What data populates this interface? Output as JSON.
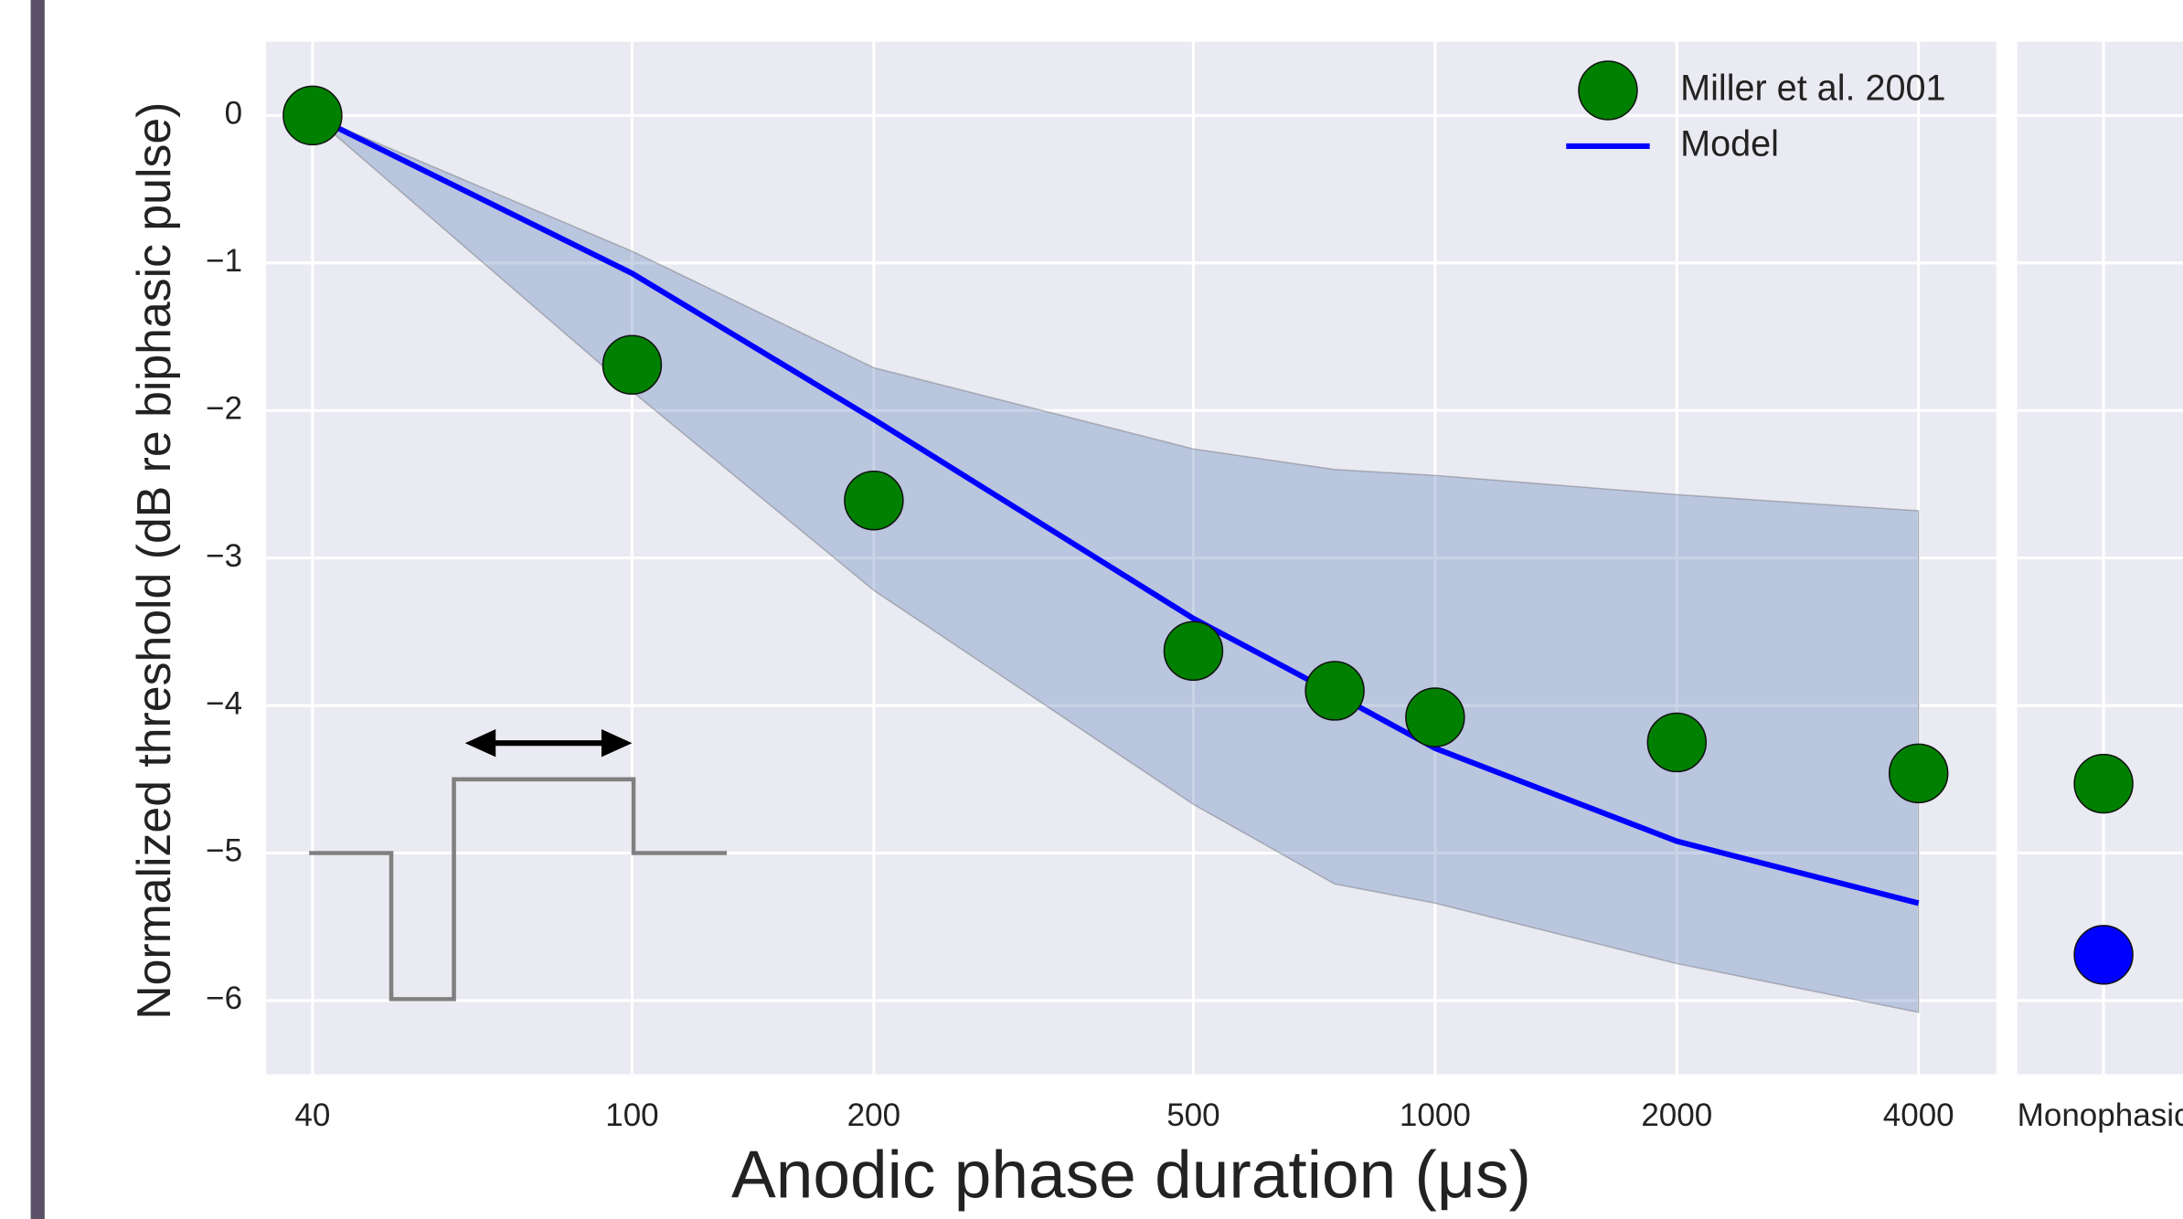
{
  "chart_data": [
    {
      "type": "line",
      "xlabel": "Anodic phase duration (μs)",
      "ylabel": "Normalized threshold (dB re biphasic pulse)",
      "x": [
        40,
        100,
        200,
        500,
        750,
        1000,
        2000,
        4000
      ],
      "xlim": [
        35,
        5000
      ],
      "xticks": [
        40,
        100,
        200,
        500,
        1000,
        2000,
        4000
      ],
      "xscale": "log",
      "ylim": [
        -6.5,
        0.5
      ],
      "yticks": [
        {
          "value": -6,
          "label": "−6"
        },
        {
          "value": -5,
          "label": "−5"
        },
        {
          "value": -4,
          "label": "−4"
        },
        {
          "value": -3,
          "label": "−3"
        },
        {
          "value": -2,
          "label": "−2"
        },
        {
          "value": -1,
          "label": "−1"
        },
        0
      ],
      "grid": true,
      "legend": "upper right",
      "series": [
        {
          "name": "Miller et al. 2001",
          "color": "#008000",
          "marker": "circle",
          "values": [
            0,
            -1.69,
            -2.61,
            -3.63,
            -3.9,
            -4.08,
            -4.25,
            -4.46
          ]
        },
        {
          "name": "Model",
          "color": "#0000ff",
          "marker": "line",
          "values": [
            0,
            -1.07,
            -2.06,
            -3.41,
            -3.92,
            -4.29,
            -4.92,
            -5.34
          ]
        }
      ],
      "band": {
        "color": "#4c72b0",
        "upper": [
          0,
          -0.92,
          -1.71,
          -2.26,
          -2.4,
          -2.44,
          -2.57,
          -2.68
        ],
        "lower": [
          0,
          -1.87,
          -3.22,
          -4.67,
          -5.21,
          -5.34,
          -5.75,
          -6.08
        ]
      }
    },
    {
      "type": "scatter",
      "categories": [
        "Monophasic"
      ],
      "ylim": [
        -6.5,
        0.5
      ],
      "yticks": [
        -6,
        -5,
        -4,
        -3,
        -2,
        -1,
        0
      ],
      "grid": true,
      "series": [
        {
          "color": "#008000",
          "values": [
            -4.53
          ]
        },
        {
          "color": "#0000ff",
          "values": [
            -5.69
          ]
        }
      ]
    }
  ]
}
